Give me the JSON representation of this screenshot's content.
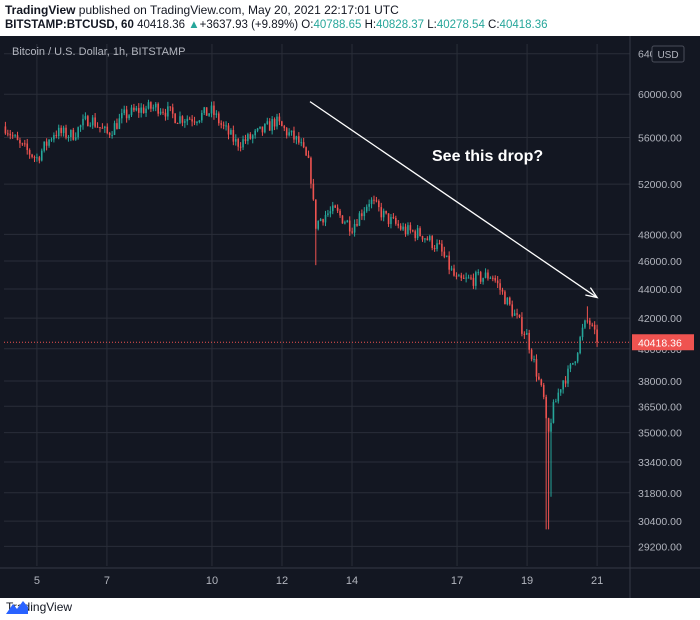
{
  "header": {
    "brand": "TradingView",
    "published": " published on TradingView.com, May 20, 2021 22:17:01 UTC",
    "symbol": "BITSTAMP:BTCUSD, 60",
    "last": "40418.36",
    "arrow": "▲",
    "change": "+3637.93 (+9.89%)",
    "o_label": "O:",
    "o_value": "40788.65",
    "h_label": "H:",
    "h_value": "40828.37",
    "l_label": "L:",
    "l_value": "40278.54",
    "c_label": "C:",
    "c_value": "40418.36"
  },
  "footer": {
    "brand": "TradingView",
    "logo_icon": "tradingview-logo-icon"
  },
  "colors": {
    "background": "#131722",
    "grid": "#2a2e39",
    "up": "#26a69a",
    "down": "#ef5350",
    "price_line": "#ef5350",
    "text": "#b2b5be",
    "annotation": "#ffffff"
  },
  "chart_data": {
    "type": "candlestick",
    "title": "Bitcoin / U.S. Dollar, 1h, BITSTAMP",
    "currency_label": "USD",
    "last_price": 40418.36,
    "last_price_label": "40418.36",
    "y_ticks": [
      64000,
      60000,
      56000,
      52000,
      48000,
      46000,
      44000,
      42000,
      40000,
      38000,
      36500,
      35000,
      33400,
      31800,
      30400,
      29200
    ],
    "y_tick_labels": [
      "64000.00",
      "60000.00",
      "56000.00",
      "52000.00",
      "48000.00",
      "46000.00",
      "44000.00",
      "42000.00",
      "40000.00",
      "38000.00",
      "36500.00",
      "35000.00",
      "33400.00",
      "31800.00",
      "30400.00",
      "29200.00"
    ],
    "y_scale": "log",
    "ylim": [
      28300,
      65000
    ],
    "x_ticks": [
      5,
      7,
      10,
      12,
      14,
      17,
      19,
      21
    ],
    "x_tick_labels": [
      "5",
      "7",
      "10",
      "12",
      "14",
      "17",
      "19",
      "21"
    ],
    "xlim": [
      4.06,
      21.94
    ],
    "grid": true,
    "annotation_text": "See this drop?",
    "annotation_arrow": {
      "from": [
        12.8,
        59300
      ],
      "to": [
        21.0,
        43400
      ]
    },
    "price_path": [
      [
        4.1,
        57000
      ],
      [
        4.5,
        55300
      ],
      [
        5.0,
        54200
      ],
      [
        5.5,
        56500
      ],
      [
        6.0,
        56200
      ],
      [
        6.5,
        57800
      ],
      [
        7.0,
        56300
      ],
      [
        7.5,
        58000
      ],
      [
        8.0,
        58600
      ],
      [
        8.5,
        58800
      ],
      [
        9.0,
        57800
      ],
      [
        9.5,
        57800
      ],
      [
        10.0,
        58400
      ],
      [
        10.3,
        57000
      ],
      [
        10.7,
        55500
      ],
      [
        11.0,
        55800
      ],
      [
        11.5,
        56700
      ],
      [
        11.8,
        57500
      ],
      [
        12.1,
        56600
      ],
      [
        12.5,
        55500
      ],
      [
        12.8,
        53400
      ],
      [
        12.95,
        48700
      ],
      [
        13.2,
        49500
      ],
      [
        13.5,
        49800
      ],
      [
        14.0,
        48600
      ],
      [
        14.5,
        50700
      ],
      [
        15.0,
        49200
      ],
      [
        15.5,
        48300
      ],
      [
        16.0,
        48000
      ],
      [
        16.5,
        46900
      ],
      [
        17.0,
        44500
      ],
      [
        17.5,
        44700
      ],
      [
        18.0,
        45000
      ],
      [
        18.5,
        42800
      ],
      [
        19.0,
        40800
      ],
      [
        19.3,
        38300
      ],
      [
        19.5,
        36700
      ],
      [
        19.58,
        34500
      ],
      [
        19.7,
        36000
      ],
      [
        20.0,
        38000
      ],
      [
        20.2,
        38500
      ],
      [
        20.4,
        39700
      ],
      [
        20.6,
        41300
      ],
      [
        20.75,
        41900
      ],
      [
        21.0,
        40418
      ]
    ],
    "wick_extremes": [
      {
        "x": 12.95,
        "low": 45700
      },
      {
        "x": 19.58,
        "low": 30000
      },
      {
        "x": 19.7,
        "low": 31600
      },
      {
        "x": 20.75,
        "high": 42800
      }
    ]
  }
}
